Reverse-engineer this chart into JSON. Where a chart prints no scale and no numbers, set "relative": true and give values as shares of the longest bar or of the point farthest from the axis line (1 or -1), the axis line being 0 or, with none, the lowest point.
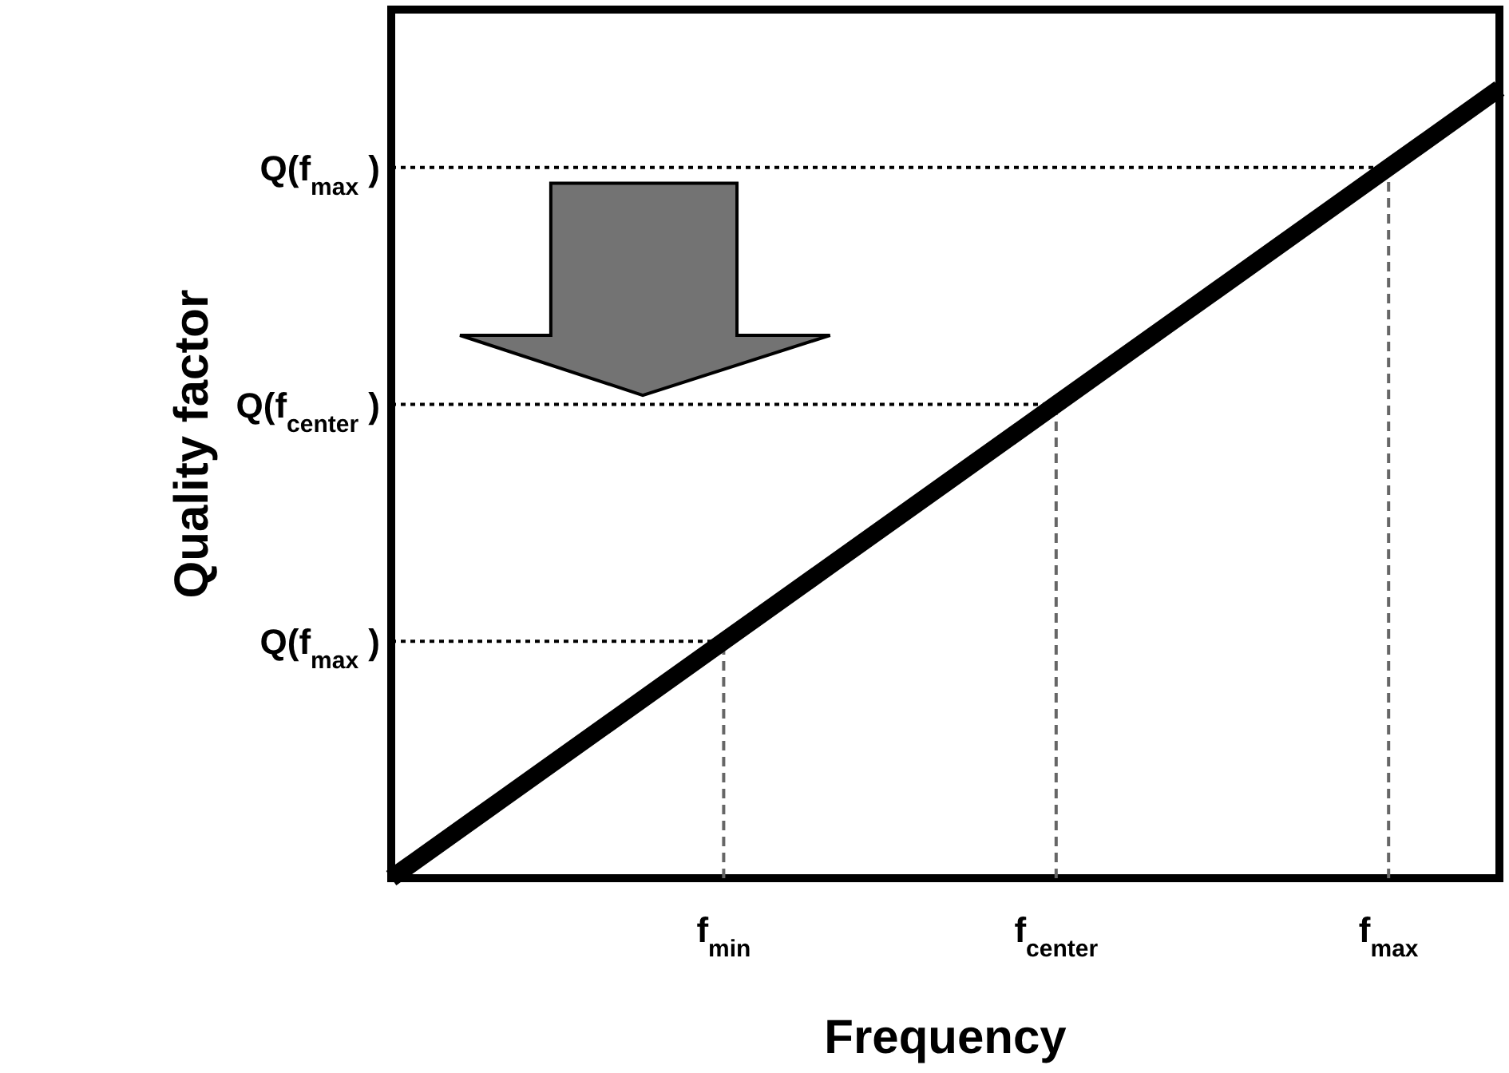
{
  "chart_data": {
    "type": "line",
    "xlabel": "Frequency",
    "ylabel": "Quality factor",
    "relative": true,
    "marker": "none",
    "categories": [
      null,
      null,
      null,
      "f$_{min}$",
      null,
      null,
      "f$_{center}$",
      null,
      null,
      "f$_{max}$",
      null
    ],
    "annotations": [
      "Q(f$_{max}$ )",
      "Q(f$_{center}$ )",
      "Q(f$_{max}$ )"
    ],
    "series": [
      {
        "color": "#000000",
        "values": [
          0,
          0.1,
          0.2,
          0.3,
          0.4,
          0.5,
          0.6,
          0.7,
          0.8,
          0.9,
          1
        ],
        "line_style": "solid"
      },
      {
        "color": "#000000",
        "values": [
          0.3,
          0.3,
          0.3,
          0.3,
          null,
          null,
          null,
          null,
          null,
          null,
          null
        ],
        "line_style": "dotted"
      },
      {
        "color": "#000000",
        "values": [
          0.6,
          0.6,
          0.6,
          0.6,
          0.6,
          0.6,
          0.6,
          null,
          null,
          null,
          null
        ],
        "line_style": "dotted"
      },
      {
        "color": "#000000",
        "values": [
          0.9,
          0.9,
          0.9,
          0.9,
          0.9,
          0.9,
          0.9,
          0.9,
          0.9,
          0.9,
          null
        ],
        "line_style": "dotted"
      },
      {
        "color": "#666666",
        "x": [
          "f$_{min}$",
          "f$_{min}$"
        ],
        "values": [
          0,
          0.3
        ],
        "line_style": "dashed"
      },
      {
        "color": "#666666",
        "x": [
          "f$_{center}$",
          "f$_{center}$"
        ],
        "values": [
          0,
          0.6
        ],
        "line_style": "dashed"
      },
      {
        "color": "#666666",
        "x": [
          "f$_{max}$",
          "f$_{max}$"
        ],
        "values": [
          0,
          0.9
        ],
        "line_style": "dashed"
      }
    ]
  }
}
